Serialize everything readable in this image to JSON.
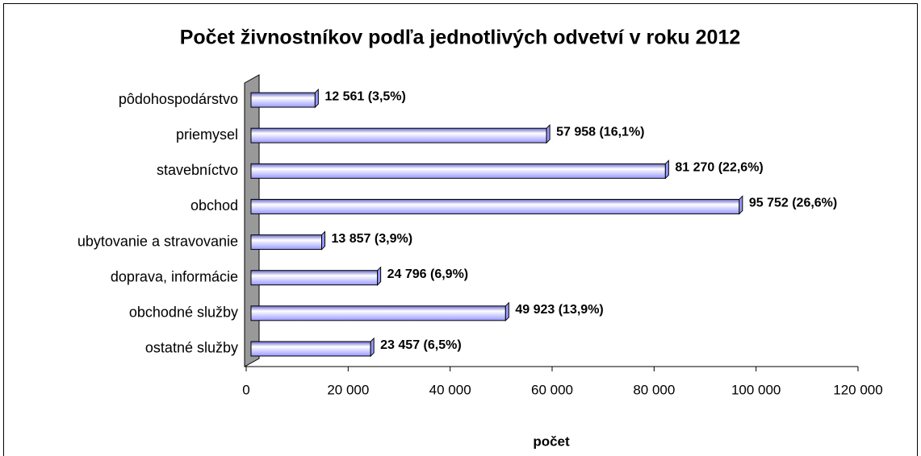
{
  "chart_data": {
    "type": "bar",
    "orientation": "horizontal",
    "title": "Počet živnostníkov podľa jednotlivých odvetví v roku 2012",
    "xlabel": "počet",
    "categories": [
      "pôdohospodárstvo",
      "priemysel",
      "stavebníctvo",
      "obchod",
      "ubytovanie a stravovanie",
      "doprava, informácie",
      "obchodné služby",
      "ostatné služby"
    ],
    "values": [
      12561,
      57958,
      81270,
      95752,
      13857,
      24796,
      49923,
      23457
    ],
    "value_labels": [
      "12 561 (3,5%)",
      "57 958 (16,1%)",
      "81 270 (22,6%)",
      "95 752 (26,6%)",
      "13 857 (3,9%)",
      "24 796 (6,9%)",
      "49 923 (13,9%)",
      "23 457 (6,5%)"
    ],
    "color": "#9999ff",
    "xlim": [
      0,
      120000
    ],
    "xticks": [
      0,
      {
        "value": 20000,
        "label": "20 000"
      },
      {
        "value": 40000,
        "label": "40 000"
      },
      {
        "value": 60000,
        "label": "60 000"
      },
      {
        "value": 80000,
        "label": "80 000"
      },
      {
        "value": 100000,
        "label": "100 000"
      },
      {
        "value": 120000,
        "label": "120 000"
      }
    ]
  }
}
